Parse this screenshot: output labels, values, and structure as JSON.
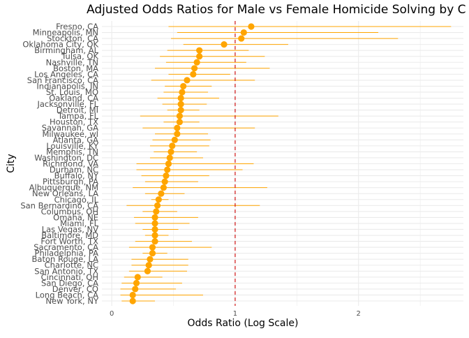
{
  "chart_data": {
    "type": "scatter",
    "title": "Adjusted Odds Ratios for Male vs Female Homicide Solving by C",
    "xlabel": "Odds Ratio (Log Scale)",
    "ylabel": "City",
    "xlim": [
      -0.08,
      2.85
    ],
    "xticks": [
      0,
      1,
      2
    ],
    "reference_line": 1,
    "grid": true,
    "colors": {
      "point": "#FFA500",
      "errorbar": "#FFA500",
      "refline": "#CC0000",
      "grid": "#EBEBEB"
    },
    "series": [
      {
        "points": [
          {
            "city": "Fresno, CA",
            "or": 1.13,
            "lo": 0.46,
            "hi": 2.75
          },
          {
            "city": "Minneapolis, MN",
            "or": 1.07,
            "lo": 0.53,
            "hi": 2.16
          },
          {
            "city": "Stockton, CA",
            "or": 1.05,
            "lo": 0.48,
            "hi": 2.32
          },
          {
            "city": "Oklahoma City, OK",
            "or": 0.91,
            "lo": 0.58,
            "hi": 1.43
          },
          {
            "city": "Birmingham, AL",
            "or": 0.71,
            "lo": 0.45,
            "hi": 1.11
          },
          {
            "city": "Tulsa, OK",
            "or": 0.71,
            "lo": 0.39,
            "hi": 1.24
          },
          {
            "city": "Nashville, TN",
            "or": 0.69,
            "lo": 0.44,
            "hi": 1.09
          },
          {
            "city": "Boston, MA",
            "or": 0.67,
            "lo": 0.35,
            "hi": 1.28
          },
          {
            "city": "Los Angeles, CA",
            "or": 0.66,
            "lo": 0.46,
            "hi": 0.96
          },
          {
            "city": "San Francisco, CA",
            "or": 0.61,
            "lo": 0.32,
            "hi": 1.16
          },
          {
            "city": "Indianapolis, IN",
            "or": 0.58,
            "lo": 0.43,
            "hi": 0.81
          },
          {
            "city": "St. Louis, MO",
            "or": 0.57,
            "lo": 0.42,
            "hi": 0.78
          },
          {
            "city": "Oakland, CA",
            "or": 0.56,
            "lo": 0.37,
            "hi": 0.87
          },
          {
            "city": "Jacksonville, FL",
            "or": 0.56,
            "lo": 0.41,
            "hi": 0.77
          },
          {
            "city": "Detroit, MI",
            "or": 0.56,
            "lo": 0.45,
            "hi": 0.71
          },
          {
            "city": "Tampa, FL",
            "or": 0.55,
            "lo": 0.23,
            "hi": 1.35
          },
          {
            "city": "Houston, TX",
            "or": 0.55,
            "lo": 0.42,
            "hi": 0.71
          },
          {
            "city": "Savannah, GA",
            "or": 0.53,
            "lo": 0.25,
            "hi": 1.16
          },
          {
            "city": "Milwaukee, wI",
            "or": 0.53,
            "lo": 0.35,
            "hi": 0.78
          },
          {
            "city": "Atlanta, GA",
            "or": 0.51,
            "lo": 0.33,
            "hi": 0.8
          },
          {
            "city": "Louisville, KY",
            "or": 0.49,
            "lo": 0.31,
            "hi": 0.79
          },
          {
            "city": "Memphis, TN",
            "or": 0.48,
            "lo": 0.34,
            "hi": 0.69
          },
          {
            "city": "Washington, DC",
            "or": 0.47,
            "lo": 0.31,
            "hi": 0.74
          },
          {
            "city": "Richmond, VA",
            "or": 0.46,
            "lo": 0.2,
            "hi": 1.15
          },
          {
            "city": "Durham, NC",
            "or": 0.45,
            "lo": 0.2,
            "hi": 1.06
          },
          {
            "city": "Buffalo, NY",
            "or": 0.44,
            "lo": 0.24,
            "hi": 0.79
          },
          {
            "city": "Pittsburgh, PA",
            "or": 0.43,
            "lo": 0.27,
            "hi": 0.7
          },
          {
            "city": "Albuquerque, NM",
            "or": 0.42,
            "lo": 0.17,
            "hi": 1.26
          },
          {
            "city": "New Orleans, LA",
            "or": 0.4,
            "lo": 0.27,
            "hi": 0.59
          },
          {
            "city": "Chicago, IL",
            "or": 0.38,
            "lo": 0.32,
            "hi": 0.46
          },
          {
            "city": "San Bernardino, CA",
            "or": 0.37,
            "lo": 0.12,
            "hi": 1.2
          },
          {
            "city": "Columbus, OH",
            "or": 0.36,
            "lo": 0.25,
            "hi": 0.53
          },
          {
            "city": "Omaha, NE",
            "or": 0.35,
            "lo": 0.18,
            "hi": 0.7
          },
          {
            "city": "Miami, FL",
            "or": 0.35,
            "lo": 0.19,
            "hi": 0.63
          },
          {
            "city": "Las Vegas, NV",
            "or": 0.35,
            "lo": 0.25,
            "hi": 0.54
          },
          {
            "city": "Baltimore, MD",
            "or": 0.35,
            "lo": 0.27,
            "hi": 0.46
          },
          {
            "city": "Fort Worth, TX",
            "or": 0.35,
            "lo": 0.19,
            "hi": 0.65
          },
          {
            "city": "Sacramento, CA",
            "or": 0.33,
            "lo": 0.14,
            "hi": 0.81
          },
          {
            "city": "Philadelphia, PA",
            "or": 0.33,
            "lo": 0.25,
            "hi": 0.45
          },
          {
            "city": "Baton Rouge, LA",
            "or": 0.31,
            "lo": 0.16,
            "hi": 0.62
          },
          {
            "city": "Charlotte, NC",
            "or": 0.3,
            "lo": 0.16,
            "hi": 0.62
          },
          {
            "city": "San Antonio, TX",
            "or": 0.29,
            "lo": 0.14,
            "hi": 0.61
          },
          {
            "city": "Cincinnati, OH",
            "or": 0.21,
            "lo": 0.1,
            "hi": 0.41
          },
          {
            "city": "San Diego, CA",
            "or": 0.2,
            "lo": 0.08,
            "hi": 0.57
          },
          {
            "city": "Denver, CO",
            "or": 0.19,
            "lo": 0.07,
            "hi": 0.52
          },
          {
            "city": "Long Beach, CA",
            "or": 0.17,
            "lo": 0.07,
            "hi": 0.74
          },
          {
            "city": "New York, NY",
            "or": 0.17,
            "lo": 0.08,
            "hi": 0.35
          }
        ]
      }
    ]
  }
}
